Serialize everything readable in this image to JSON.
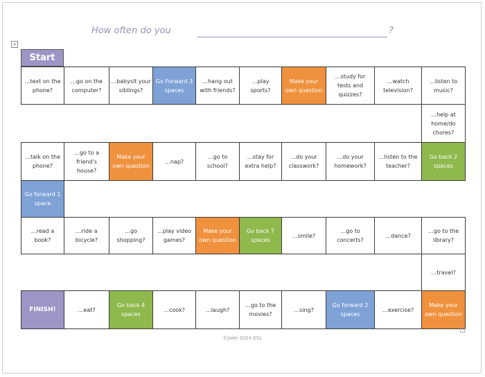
{
  "worksheet": {
    "title": "How often do you",
    "title_end": "?",
    "start_label": "Start",
    "footer": "©Jake 2014 ESL"
  },
  "board": {
    "cells": [
      {
        "text": "…text on the phone?",
        "color": "white"
      },
      {
        "text": "…go on the computer?",
        "color": "white"
      },
      {
        "text": "…babysit your siblings?",
        "color": "white"
      },
      {
        "text": "Go Forward 3 spaces",
        "color": "blue"
      },
      {
        "text": "…hang out with friends?",
        "color": "white"
      },
      {
        "text": "…play sports?",
        "color": "white"
      },
      {
        "text": "Make your own question",
        "color": "orange"
      },
      {
        "text": "…study for tests and quizzes?",
        "color": "white"
      },
      {
        "text": "…watch television?",
        "color": "white"
      },
      {
        "text": "…listen to music?",
        "color": "white"
      },
      {
        "text": "…help at home/do chores?",
        "color": "white"
      },
      {
        "text": "Go back 2 spaces",
        "color": "green"
      },
      {
        "text": "…listen to the teacher?",
        "color": "white"
      },
      {
        "text": "…do your homework?",
        "color": "white"
      },
      {
        "text": "…do your classwork?",
        "color": "white"
      },
      {
        "text": "…stay for extra help?",
        "color": "white"
      },
      {
        "text": "…go to school?",
        "color": "white"
      },
      {
        "text": "…nap?",
        "color": "white"
      },
      {
        "text": "Make your own question",
        "color": "orange"
      },
      {
        "text": "…go to a friend's house?",
        "color": "white"
      },
      {
        "text": "…talk on the phone?",
        "color": "white"
      },
      {
        "text": "Go forward 1 space",
        "color": "blue"
      },
      {
        "text": "…read a book?",
        "color": "white"
      },
      {
        "text": "…ride a bicycle?",
        "color": "white"
      },
      {
        "text": "…go shopping?",
        "color": "white"
      },
      {
        "text": "…play video games?",
        "color": "white"
      },
      {
        "text": "Make your own question",
        "color": "orange"
      },
      {
        "text": "Go back 7 spaces",
        "color": "green"
      },
      {
        "text": "…smile?",
        "color": "white"
      },
      {
        "text": "…go to concerts?",
        "color": "white"
      },
      {
        "text": "…dance?",
        "color": "white"
      },
      {
        "text": "…go to the library?",
        "color": "white"
      },
      {
        "text": "…travel?",
        "color": "white"
      },
      {
        "text": "Make your own question",
        "color": "orange"
      },
      {
        "text": "…exercise?",
        "color": "white"
      },
      {
        "text": "Go forward 2 spaces",
        "color": "blue"
      },
      {
        "text": "…sing?",
        "color": "white"
      },
      {
        "text": "…go to the movies?",
        "color": "white"
      },
      {
        "text": "…laugh?",
        "color": "white"
      },
      {
        "text": "…cook?",
        "color": "white"
      },
      {
        "text": "Go back 4 spaces",
        "color": "green"
      },
      {
        "text": "…eat?",
        "color": "white"
      },
      {
        "text": "FINISH!",
        "color": "purple"
      }
    ]
  }
}
